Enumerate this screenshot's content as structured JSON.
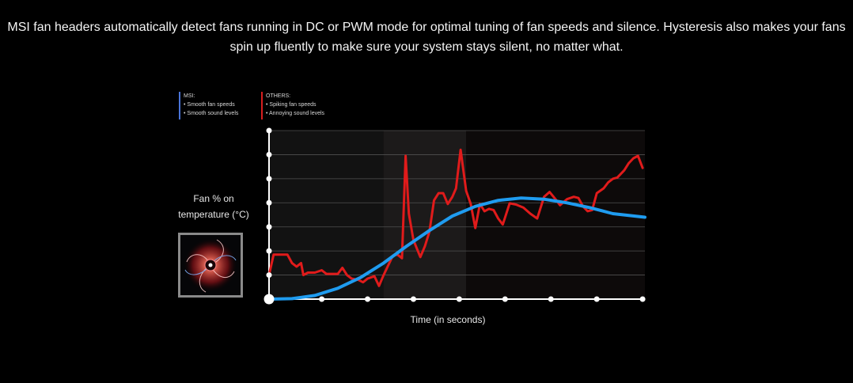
{
  "intro_text": "MSI fan headers automatically detect fans running in DC or PWM mode for optimal tuning of fan speeds and silence. Hysteresis also makes your fans spin up fluently to make sure your system stays silent, no matter what.",
  "legend": {
    "msi": {
      "title": "MSI:",
      "items": [
        "• Smooth fan speeds",
        "• Smooth sound levels"
      ],
      "color": "#4a74d8"
    },
    "others": {
      "title": "OTHERS:",
      "items": [
        "• Spiking fan speeds",
        "• Annoying sound levels"
      ],
      "color": "#d81e1e"
    }
  },
  "thumbnail": {
    "icon": "fan-icon"
  },
  "chart_data": {
    "type": "line",
    "ylabel": "Fan % on temperature (°C)",
    "xlabel": "Time (in seconds)",
    "x_range": [
      0,
      8.2
    ],
    "y_range": [
      0,
      7
    ],
    "x_ticks": [
      0,
      1.15,
      2.15,
      3.15,
      4.15,
      5.15,
      6.15,
      7.15,
      8.15
    ],
    "y_ticks": [
      0,
      1,
      2,
      3,
      4,
      5,
      6,
      7
    ],
    "grid": true,
    "legend_position": "top-left",
    "series": [
      {
        "name": "MSI",
        "color": "#1f9cf0",
        "points": [
          [
            0,
            0
          ],
          [
            0.5,
            0.02
          ],
          [
            1.0,
            0.15
          ],
          [
            1.5,
            0.45
          ],
          [
            2.0,
            0.9
          ],
          [
            2.5,
            1.5
          ],
          [
            3.0,
            2.2
          ],
          [
            3.5,
            2.85
          ],
          [
            4.0,
            3.45
          ],
          [
            4.5,
            3.85
          ],
          [
            5.0,
            4.1
          ],
          [
            5.5,
            4.2
          ],
          [
            6.0,
            4.15
          ],
          [
            6.5,
            4.0
          ],
          [
            7.0,
            3.8
          ],
          [
            7.5,
            3.55
          ],
          [
            8.2,
            3.4
          ]
        ]
      },
      {
        "name": "OTHERS",
        "color": "#e01b1b",
        "points": [
          [
            0.0,
            1.0
          ],
          [
            0.1,
            1.85
          ],
          [
            0.2,
            1.85
          ],
          [
            0.4,
            1.85
          ],
          [
            0.5,
            1.5
          ],
          [
            0.6,
            1.35
          ],
          [
            0.7,
            1.5
          ],
          [
            0.75,
            1.0
          ],
          [
            0.85,
            1.1
          ],
          [
            1.0,
            1.1
          ],
          [
            1.15,
            1.2
          ],
          [
            1.25,
            1.05
          ],
          [
            1.35,
            1.05
          ],
          [
            1.5,
            1.05
          ],
          [
            1.6,
            1.3
          ],
          [
            1.7,
            1.0
          ],
          [
            1.8,
            0.85
          ],
          [
            1.95,
            0.8
          ],
          [
            2.05,
            0.7
          ],
          [
            2.15,
            0.85
          ],
          [
            2.3,
            0.95
          ],
          [
            2.4,
            0.55
          ],
          [
            2.5,
            1.0
          ],
          [
            2.7,
            1.8
          ],
          [
            2.8,
            1.85
          ],
          [
            2.9,
            1.7
          ],
          [
            2.98,
            5.95
          ],
          [
            3.05,
            3.55
          ],
          [
            3.15,
            2.45
          ],
          [
            3.3,
            1.75
          ],
          [
            3.4,
            2.2
          ],
          [
            3.5,
            2.8
          ],
          [
            3.6,
            4.1
          ],
          [
            3.7,
            4.4
          ],
          [
            3.8,
            4.4
          ],
          [
            3.9,
            3.95
          ],
          [
            4.0,
            4.25
          ],
          [
            4.08,
            4.6
          ],
          [
            4.18,
            6.2
          ],
          [
            4.3,
            4.5
          ],
          [
            4.4,
            3.95
          ],
          [
            4.5,
            2.95
          ],
          [
            4.6,
            3.95
          ],
          [
            4.7,
            3.65
          ],
          [
            4.8,
            3.75
          ],
          [
            4.9,
            3.7
          ],
          [
            5.0,
            3.35
          ],
          [
            5.1,
            3.1
          ],
          [
            5.25,
            3.98
          ],
          [
            5.4,
            3.92
          ],
          [
            5.55,
            3.8
          ],
          [
            5.7,
            3.55
          ],
          [
            5.85,
            3.35
          ],
          [
            6.0,
            4.25
          ],
          [
            6.12,
            4.45
          ],
          [
            6.25,
            4.15
          ],
          [
            6.35,
            3.9
          ],
          [
            6.5,
            4.15
          ],
          [
            6.65,
            4.25
          ],
          [
            6.75,
            4.2
          ],
          [
            6.85,
            3.85
          ],
          [
            6.95,
            3.65
          ],
          [
            7.05,
            3.7
          ],
          [
            7.15,
            4.4
          ],
          [
            7.3,
            4.6
          ],
          [
            7.4,
            4.85
          ],
          [
            7.5,
            5.0
          ],
          [
            7.6,
            5.05
          ],
          [
            7.75,
            5.35
          ],
          [
            7.85,
            5.65
          ],
          [
            7.95,
            5.85
          ],
          [
            8.05,
            5.95
          ],
          [
            8.15,
            5.45
          ]
        ]
      }
    ]
  },
  "colors": {
    "background": "#000000",
    "axis": "#ffffff",
    "grid": "#505050"
  }
}
